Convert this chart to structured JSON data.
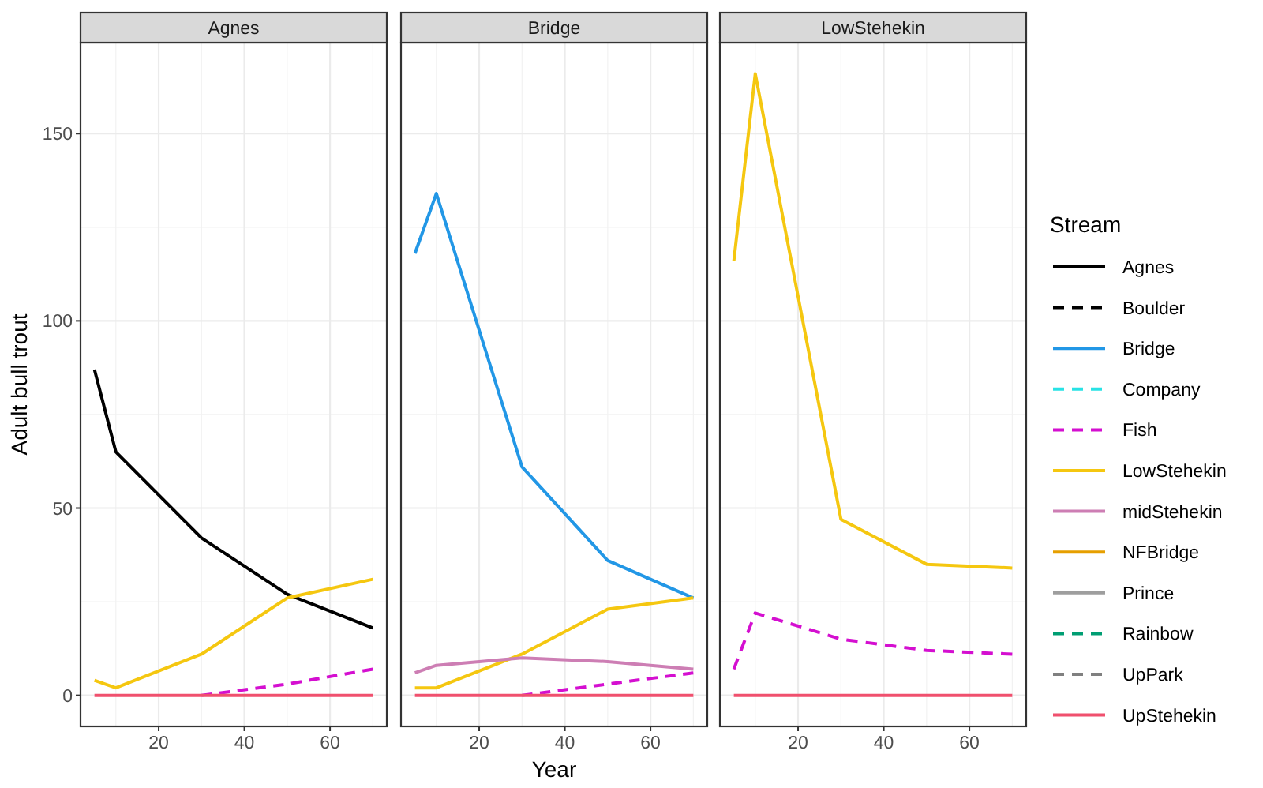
{
  "chart_data": [
    {
      "type": "line",
      "title": "Agnes",
      "ylabel": "Adult bull trout",
      "x": [
        5,
        10,
        30,
        50,
        70
      ],
      "xlim": [
        1.75,
        73.25
      ],
      "ylim": [
        -8.3,
        174.3
      ],
      "xticks": [
        20,
        40,
        60
      ],
      "yticks": [
        0,
        50,
        100,
        150
      ],
      "grid": true,
      "series": [
        {
          "color": "#000000",
          "line_style": "solid",
          "values": [
            87,
            65,
            42,
            27,
            18
          ]
        },
        {
          "color": "#f5c710",
          "line_style": "solid",
          "values": [
            4,
            2,
            11,
            26,
            31
          ]
        },
        {
          "color": "#d40fd0",
          "line_style": "dashed",
          "values": [
            null,
            null,
            0,
            3,
            7
          ]
        },
        {
          "color": "#f0506e",
          "line_style": "solid",
          "values": [
            0,
            0,
            0,
            0,
            0
          ]
        }
      ]
    },
    {
      "type": "line",
      "title": "Bridge",
      "xlabel": "Year",
      "x": [
        5,
        10,
        30,
        50,
        70
      ],
      "xlim": [
        1.75,
        73.25
      ],
      "ylim": [
        -8.3,
        174.3
      ],
      "xticks": [
        20,
        40,
        60
      ],
      "yticks": [
        0,
        50,
        100,
        150
      ],
      "grid": true,
      "tick_labels": "x",
      "series": [
        {
          "color": "#2297e6",
          "line_style": "solid",
          "values": [
            118,
            134,
            61,
            36,
            26
          ]
        },
        {
          "color": "#f5c710",
          "line_style": "solid",
          "values": [
            2,
            2,
            11,
            23,
            26
          ]
        },
        {
          "color": "#cd7eb4",
          "line_style": "solid",
          "values": [
            6,
            8,
            10,
            9,
            7
          ]
        },
        {
          "color": "#d40fd0",
          "line_style": "dashed",
          "values": [
            null,
            null,
            0,
            3,
            6
          ]
        },
        {
          "color": "#f0506e",
          "line_style": "solid",
          "values": [
            0,
            0,
            0,
            0,
            0
          ]
        }
      ]
    },
    {
      "type": "line",
      "title": "LowStehekin",
      "legend_title": "Stream",
      "legend": "right",
      "x": [
        5,
        10,
        30,
        50,
        70
      ],
      "xlim": [
        1.75,
        73.25
      ],
      "ylim": [
        -8.3,
        174.3
      ],
      "xticks": [
        20,
        40,
        60
      ],
      "yticks": [
        0,
        50,
        100,
        150
      ],
      "grid": true,
      "tick_labels": "x",
      "series": [
        {
          "name": "Agnes",
          "color": "#000000",
          "line_style": "solid",
          "values": [
            null,
            null,
            null,
            null,
            null
          ]
        },
        {
          "name": "Boulder",
          "color": "#000000",
          "line_style": "dashed",
          "values": [
            null,
            null,
            null,
            null,
            null
          ]
        },
        {
          "name": "Bridge",
          "color": "#2297e6",
          "line_style": "solid",
          "values": [
            null,
            null,
            null,
            null,
            null
          ]
        },
        {
          "name": "Company",
          "color": "#28e2e5",
          "line_style": "dashed",
          "values": [
            null,
            null,
            null,
            null,
            null
          ]
        },
        {
          "name": "Fish",
          "color": "#d40fd0",
          "line_style": "dashed",
          "values": [
            7,
            22,
            15,
            12,
            11
          ]
        },
        {
          "name": "LowStehekin",
          "color": "#f5c710",
          "line_style": "solid",
          "values": [
            116,
            166,
            47,
            35,
            34
          ]
        },
        {
          "name": "midStehekin",
          "color": "#cd7eb4",
          "line_style": "solid",
          "values": [
            null,
            null,
            null,
            null,
            null
          ]
        },
        {
          "name": "NFBridge",
          "color": "#e69f00",
          "line_style": "solid",
          "values": [
            null,
            null,
            null,
            null,
            null
          ]
        },
        {
          "name": "Prince",
          "color": "#9e9e9e",
          "line_style": "solid",
          "values": [
            null,
            null,
            null,
            null,
            null
          ]
        },
        {
          "name": "Rainbow",
          "color": "#009e73",
          "line_style": "dashed",
          "values": [
            null,
            null,
            null,
            null,
            null
          ]
        },
        {
          "name": "UpPark",
          "color": "#808080",
          "line_style": "dashed",
          "values": [
            null,
            null,
            null,
            null,
            null
          ]
        },
        {
          "name": "UpStehekin",
          "color": "#f0506e",
          "line_style": "solid",
          "values": [
            0,
            0,
            0,
            0,
            0
          ]
        }
      ]
    }
  ]
}
